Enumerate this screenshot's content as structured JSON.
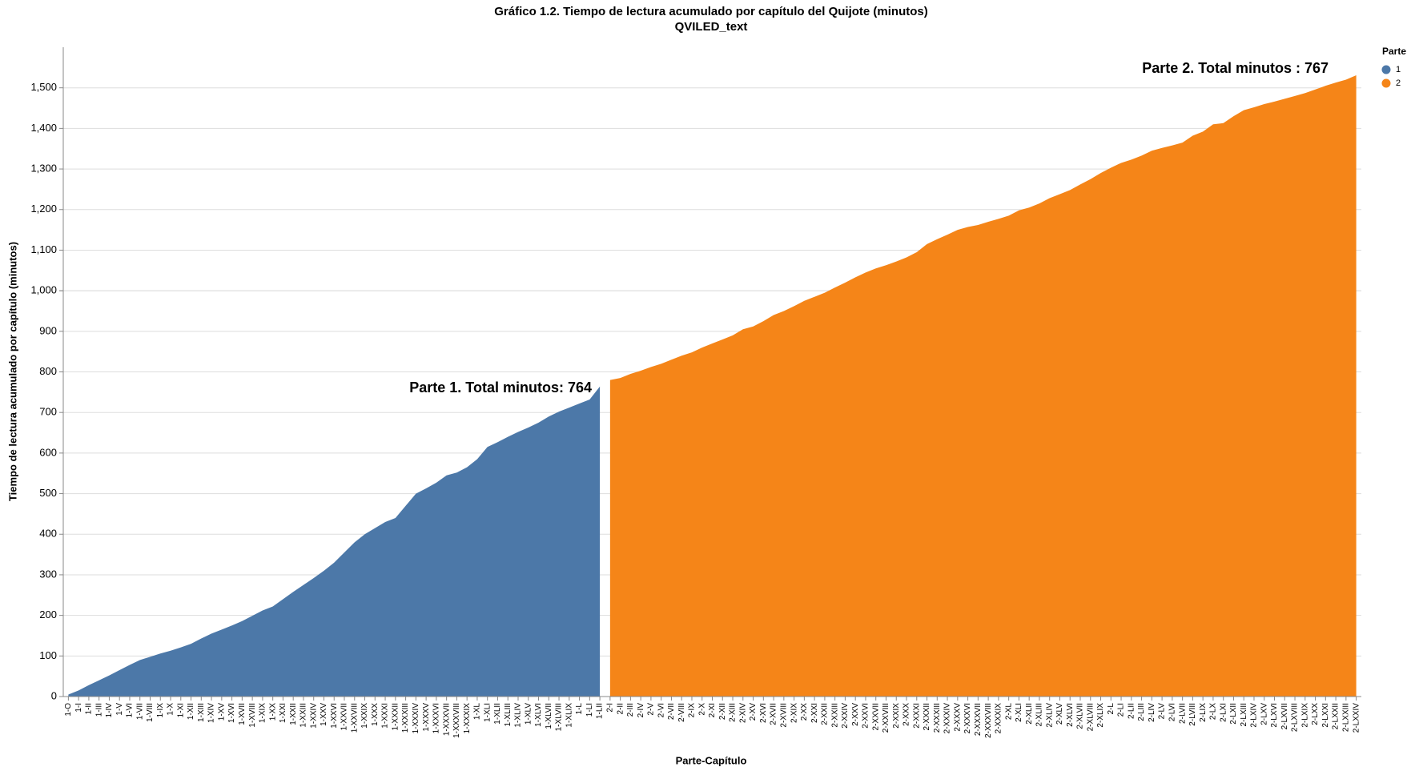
{
  "chart_data": {
    "type": "area",
    "title": "Gráfico 1.2. Tiempo de lectura acumulado por capítulo del Quijote (minutos)",
    "subtitle": "QVILED_text",
    "x_label": "Parte-Capítulo",
    "y_label": "Tiempo de lectura acumulado por capítulo (minutos)",
    "legend_title": "Parte",
    "legend": "top-right",
    "grid": true,
    "annotations": [
      "Parte 1. Total minutos: 764",
      "Parte 2. Total minutos : 767"
    ],
    "categories": [
      "1-O",
      "1-I",
      "1-II",
      "1-III",
      "1-IV",
      "1-V",
      "1-VI",
      "1-VII",
      "1-VIII",
      "1-IX",
      "1-X",
      "1-XI",
      "1-XII",
      "1-XIII",
      "1-XIV",
      "1-XV",
      "1-XVI",
      "1-XVII",
      "1-XVIII",
      "1-XIX",
      "1-XX",
      "1-XXI",
      "1-XXII",
      "1-XXIII",
      "1-XXIV",
      "1-XXV",
      "1-XXVI",
      "1-XXVII",
      "1-XXVIII",
      "1-XXIX",
      "1-XXX",
      "1-XXXI",
      "1-XXXII",
      "1-XXXIII",
      "1-XXXIV",
      "1-XXXV",
      "1-XXXVI",
      "1-XXXVII",
      "1-XXXVIII",
      "1-XXXIX",
      "1-XL",
      "1-XLI",
      "1-XLII",
      "1-XLIII",
      "1-XLIV",
      "1-XLV",
      "1-XLVI",
      "1-XLVII",
      "1-XLVIII",
      "1-XLIX",
      "1-L",
      "1-LI",
      "1-LII",
      "2-I",
      "2-II",
      "2-III",
      "2-IV",
      "2-V",
      "2-VI",
      "2-VII",
      "2-VIII",
      "2-IX",
      "2-X",
      "2-XI",
      "2-XII",
      "2-XIII",
      "2-XIV",
      "2-XV",
      "2-XVI",
      "2-XVII",
      "2-XVIII",
      "2-XIX",
      "2-XX",
      "2-XXI",
      "2-XXII",
      "2-XXIII",
      "2-XXIV",
      "2-XXV",
      "2-XXVI",
      "2-XXVII",
      "2-XXVIII",
      "2-XXIX",
      "2-XXX",
      "2-XXXI",
      "2-XXXII",
      "2-XXXIII",
      "2-XXXIV",
      "2-XXXV",
      "2-XXXVI",
      "2-XXXVII",
      "2-XXXVIII",
      "2-XXXIX",
      "2-XL",
      "2-XLI",
      "2-XLII",
      "2-XLIII",
      "2-XLIV",
      "2-XLV",
      "2-XLVI",
      "2-XLVII",
      "2-XLVIII",
      "2-XLIX",
      "2-L",
      "2-LI",
      "2-LII",
      "2-LIII",
      "2-LIV",
      "2-LV",
      "2-LVI",
      "2-LVII",
      "2-LVIII",
      "2-LIX",
      "2-LX",
      "2-LXI",
      "2-LXII",
      "2-LXIII",
      "2-LXIV",
      "2-LXV",
      "2-LXVI",
      "2-LXVII",
      "2-LXVIII",
      "2-LXIX",
      "2-LXX",
      "2-LXXI",
      "2-LXXII",
      "2-LXXIII",
      "2-LXXIV"
    ],
    "series": [
      {
        "name": "1",
        "color": "#4c78a8",
        "values": [
          5,
          15,
          28,
          40,
          52,
          65,
          78,
          90,
          98,
          106,
          113,
          121,
          130,
          143,
          155,
          165,
          175,
          186,
          199,
          212,
          222,
          240,
          258,
          275,
          292,
          310,
          330,
          355,
          380,
          400,
          415,
          430,
          440,
          470,
          500,
          513,
          527,
          545,
          552,
          565,
          585,
          615,
          627,
          640,
          652,
          663,
          675,
          690,
          702,
          712,
          722,
          732,
          764,
          null,
          null,
          null,
          null,
          null,
          null,
          null,
          null,
          null,
          null,
          null,
          null,
          null,
          null,
          null,
          null,
          null,
          null,
          null,
          null,
          null,
          null,
          null,
          null,
          null,
          null,
          null,
          null,
          null,
          null,
          null,
          null,
          null,
          null,
          null,
          null,
          null,
          null,
          null,
          null,
          null,
          null,
          null,
          null,
          null,
          null,
          null,
          null,
          null,
          null,
          null,
          null,
          null,
          null,
          null,
          null,
          null,
          null,
          null,
          null,
          null,
          null,
          null,
          null,
          null,
          null,
          null,
          null,
          null,
          null,
          null,
          null,
          null,
          null
        ]
      },
      {
        "name": "2",
        "color": "#f58518",
        "values": [
          null,
          null,
          null,
          null,
          null,
          null,
          null,
          null,
          null,
          null,
          null,
          null,
          null,
          null,
          null,
          null,
          null,
          null,
          null,
          null,
          null,
          null,
          null,
          null,
          null,
          null,
          null,
          null,
          null,
          null,
          null,
          null,
          null,
          null,
          null,
          null,
          null,
          null,
          null,
          null,
          null,
          null,
          null,
          null,
          null,
          null,
          null,
          null,
          null,
          null,
          null,
          null,
          null,
          780,
          785,
          795,
          803,
          812,
          820,
          830,
          840,
          848,
          860,
          870,
          880,
          890,
          905,
          912,
          925,
          940,
          950,
          962,
          975,
          985,
          995,
          1008,
          1020,
          1033,
          1045,
          1055,
          1063,
          1072,
          1082,
          1095,
          1115,
          1127,
          1138,
          1150,
          1157,
          1162,
          1170,
          1177,
          1185,
          1198,
          1205,
          1215,
          1228,
          1238,
          1248,
          1262,
          1275,
          1290,
          1303,
          1315,
          1323,
          1333,
          1345,
          1352,
          1358,
          1365,
          1382,
          1392,
          1410,
          1413,
          1430,
          1445,
          1452,
          1460,
          1466,
          1473,
          1480,
          1487,
          1496,
          1505,
          1513,
          1520,
          1531
        ]
      }
    ],
    "ylim": [
      0,
      1600
    ],
    "yticks": [
      0,
      100,
      200,
      300,
      400,
      500,
      600,
      700,
      800,
      900,
      1000,
      1100,
      1200,
      1300,
      1400,
      1500,
      {
        "value": 1000,
        "label": "1,000"
      }
    ]
  }
}
